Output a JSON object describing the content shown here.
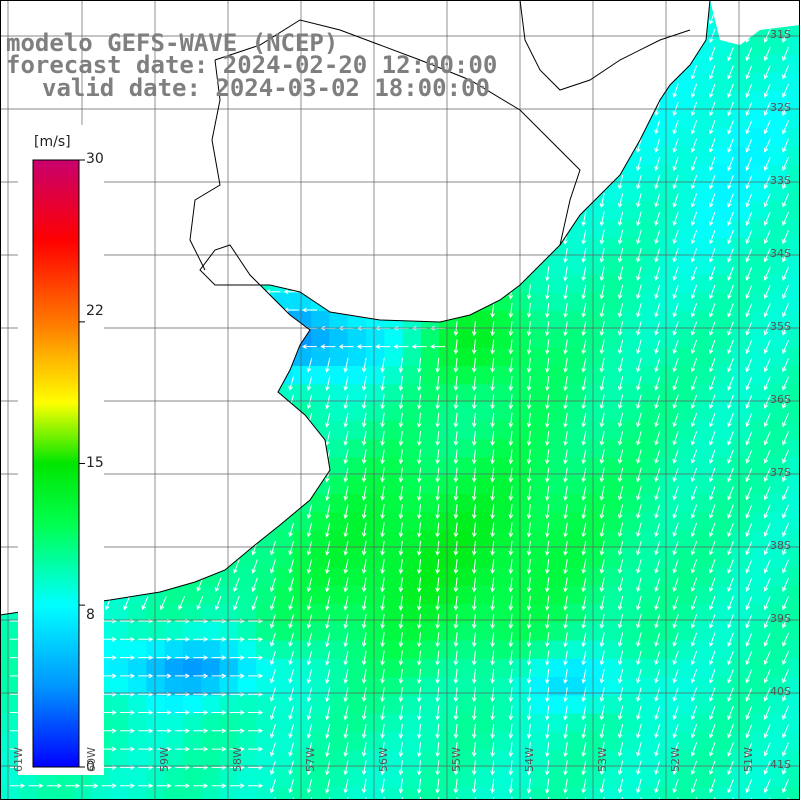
{
  "map": {
    "title": "modelo GEFS-WAVE (NCEP)",
    "forecast_line": "forecast date: 2024-02-20 12:00:00",
    "valid_line": "valid date: 2024-03-02 18:00:00",
    "variable": "wind speed",
    "colorbar": {
      "unit": "[m/s]",
      "ticks": [
        "30",
        "22",
        "15",
        "8",
        "0"
      ],
      "tick_values": [
        30,
        22,
        15,
        8,
        0
      ],
      "colors": [
        "#0000ff",
        "#0099ff",
        "#00ffff",
        "#00ff00",
        "#ffff00",
        "#ff8000",
        "#ff0000",
        "#cc0066"
      ]
    },
    "lat_labels": [
      "31S",
      "32S",
      "33S",
      "34S",
      "35S",
      "36S",
      "37S",
      "38S",
      "39S",
      "40S",
      "41S"
    ],
    "lon_labels": [
      "61W",
      "60W",
      "59W",
      "58W",
      "57W",
      "56W",
      "55W",
      "54W",
      "53W",
      "52W",
      "51W"
    ],
    "land_color": "#ffffff",
    "grid_color": "#606060"
  }
}
